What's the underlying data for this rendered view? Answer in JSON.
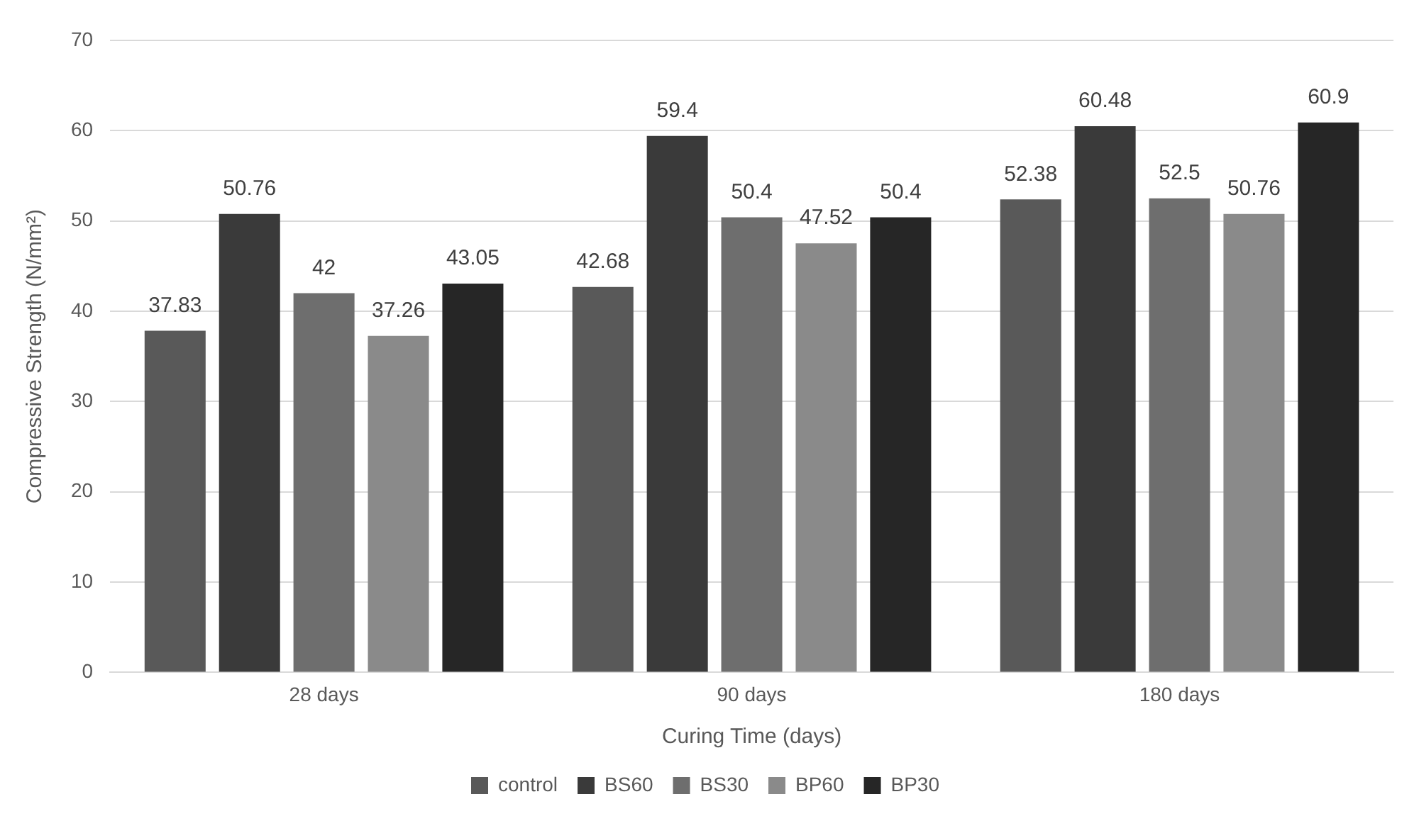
{
  "chart_data": {
    "type": "bar",
    "xlabel": "Curing Time (days)",
    "ylabel": "Compressive Strength (N/mm²)",
    "categories": [
      "28 days",
      "90 days",
      "180 days"
    ],
    "series": [
      {
        "name": "control",
        "color": "#595959",
        "values": [
          37.83,
          42.68,
          52.38
        ]
      },
      {
        "name": "BS60",
        "color": "#3a3a3a",
        "values": [
          50.76,
          59.4,
          60.48
        ]
      },
      {
        "name": "BS30",
        "color": "#6e6e6e",
        "values": [
          42,
          50.4,
          52.5
        ]
      },
      {
        "name": "BP60",
        "color": "#8a8a8a",
        "values": [
          37.26,
          47.52,
          50.76
        ]
      },
      {
        "name": "BP30",
        "color": "#262626",
        "values": [
          43.05,
          50.4,
          60.9
        ]
      }
    ],
    "ylim": [
      0,
      70
    ],
    "yticks": [
      0,
      10,
      20,
      30,
      40,
      50,
      60,
      70
    ],
    "grid": "y",
    "legend": "bottom",
    "data_labels": true
  }
}
